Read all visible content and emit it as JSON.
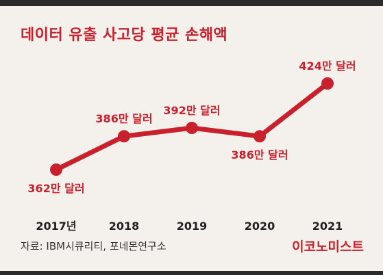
{
  "header": {
    "title": "데이터 유출 사고당 평균 손해액"
  },
  "footer": {
    "source": "자료: IBM시큐리티, 포네몬연구소",
    "brand": "이코노미스트"
  },
  "colors": {
    "accent": "#c8202c",
    "background": "#f4f1ec",
    "bar": "#2b2b2b"
  },
  "chart_data": {
    "type": "line",
    "title": "데이터 유출 사고당 평균 손해액",
    "categories": [
      "2017년",
      "2018",
      "2019",
      "2020",
      "2021"
    ],
    "series": [
      {
        "values": [
          362,
          386,
          392,
          386,
          424
        ],
        "labels": [
          "362만 달러",
          "386만 달러",
          "392만 달러",
          "386만 달러",
          "424만 달러"
        ]
      }
    ],
    "unit": "만 달러",
    "xlabel": "",
    "ylabel": "",
    "grid": false,
    "legend": "none"
  }
}
